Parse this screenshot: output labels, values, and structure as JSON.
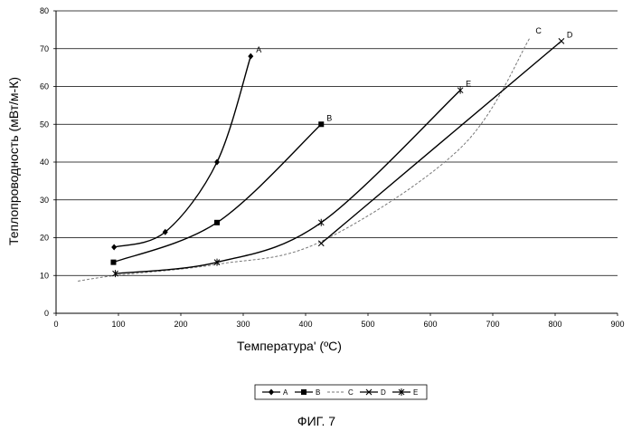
{
  "chart_data": {
    "type": "line",
    "xlabel": "Температура' (ºC)",
    "ylabel": "Теплопроводность (мВт/м-К)",
    "caption": "ФИГ. 7",
    "xlim": [
      0,
      900
    ],
    "ylim": [
      0,
      80
    ],
    "xticks": [
      "0",
      "100",
      "200",
      "300",
      "400",
      "500",
      "600",
      "700",
      "800",
      "900"
    ],
    "yticks": [
      "0",
      "10",
      "20",
      "30",
      "40",
      "50",
      "60",
      "70",
      "80"
    ],
    "grid": "horizontal",
    "legend_position": "bottom-center",
    "series": [
      {
        "name": "A",
        "marker": "diamond",
        "color": "#000000",
        "dash": "",
        "x": [
          93,
          175,
          258,
          312
        ],
        "y": [
          17.5,
          21.5,
          40,
          68
        ]
      },
      {
        "name": "B",
        "marker": "square",
        "color": "#000000",
        "dash": "",
        "x": [
          92,
          258,
          425
        ],
        "y": [
          13.5,
          24,
          50
        ]
      },
      {
        "name": "C",
        "marker": "none",
        "color": "#777777",
        "dash": "3 2",
        "x": [
          35,
          95,
          260,
          425,
          650,
          760
        ],
        "y": [
          8.5,
          10,
          13,
          19,
          44,
          73
        ]
      },
      {
        "name": "D",
        "marker": "x",
        "color": "#000000",
        "dash": "",
        "x": [
          425,
          810
        ],
        "y": [
          18.5,
          72
        ]
      },
      {
        "name": "E",
        "marker": "asterisk",
        "color": "#000000",
        "dash": "",
        "x": [
          95,
          258,
          425,
          648
        ],
        "y": [
          10.5,
          13.5,
          24,
          59
        ]
      }
    ],
    "legend": [
      "A",
      "B",
      "C",
      "D",
      "E"
    ]
  }
}
